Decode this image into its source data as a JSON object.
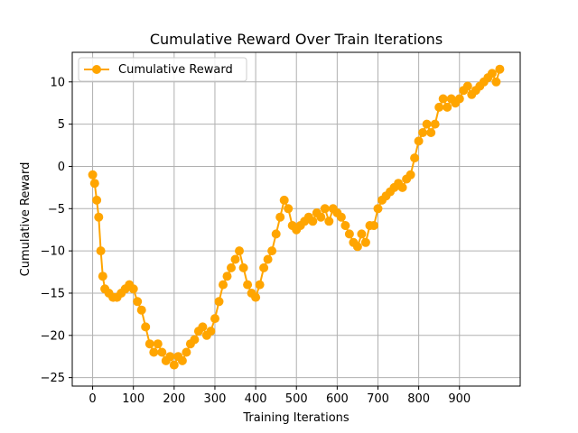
{
  "chart_data": {
    "type": "line",
    "title": "Cumulative Reward Over Train Iterations",
    "xlabel": "Training Iterations",
    "ylabel": "Cumulative Reward",
    "xlim": [
      -50,
      1049
    ],
    "ylim": [
      -26,
      13.5
    ],
    "xticks": [
      0,
      100,
      200,
      300,
      400,
      500,
      600,
      700,
      800,
      900
    ],
    "yticks": [
      -25,
      -20,
      -15,
      -10,
      -5,
      0,
      5,
      10
    ],
    "grid": true,
    "legend_position": "top-left",
    "series": [
      {
        "name": "Cumulative Reward",
        "color": "#ffa500",
        "marker": "circle",
        "x": [
          0,
          5,
          10,
          15,
          20,
          25,
          30,
          40,
          50,
          60,
          70,
          80,
          90,
          100,
          110,
          120,
          130,
          140,
          150,
          160,
          170,
          180,
          190,
          200,
          210,
          220,
          230,
          240,
          250,
          260,
          270,
          280,
          290,
          300,
          310,
          320,
          330,
          340,
          350,
          360,
          370,
          380,
          390,
          400,
          410,
          420,
          430,
          440,
          450,
          460,
          470,
          480,
          490,
          500,
          510,
          520,
          530,
          540,
          550,
          560,
          570,
          580,
          590,
          600,
          610,
          620,
          630,
          640,
          650,
          660,
          670,
          680,
          690,
          700,
          710,
          720,
          730,
          740,
          750,
          760,
          770,
          780,
          790,
          800,
          810,
          820,
          830,
          840,
          850,
          860,
          870,
          880,
          890,
          900,
          910,
          920,
          930,
          940,
          950,
          960,
          970,
          980,
          990,
          999
        ],
        "y": [
          -1,
          -2,
          -4,
          -6,
          -10,
          -13,
          -14.5,
          -15,
          -15.5,
          -15.5,
          -15,
          -14.5,
          -14,
          -14.5,
          -16,
          -17,
          -19,
          -21,
          -22,
          -21,
          -22,
          -23,
          -22.5,
          -23.5,
          -22.5,
          -23,
          -22,
          -21,
          -20.5,
          -19.5,
          -19,
          -20,
          -19.5,
          -18,
          -16,
          -14,
          -13,
          -12,
          -11,
          -10,
          -12,
          -14,
          -15,
          -15.5,
          -14,
          -12,
          -11,
          -10,
          -8,
          -6,
          -4,
          -5,
          -7,
          -7.5,
          -7,
          -6.5,
          -6,
          -6.5,
          -5.5,
          -6,
          -5,
          -6.5,
          -5,
          -5.5,
          -6,
          -7,
          -8,
          -9,
          -9.5,
          -8,
          -9,
          -7,
          -7,
          -5,
          -4,
          -3.5,
          -3,
          -2.5,
          -2,
          -2.5,
          -1.5,
          -1,
          1,
          3,
          4,
          5,
          4,
          5,
          7,
          8,
          7,
          8,
          7.5,
          8,
          9,
          9.5,
          8.5,
          9,
          9.5,
          10,
          10.5,
          11,
          10,
          11.5
        ]
      }
    ]
  }
}
